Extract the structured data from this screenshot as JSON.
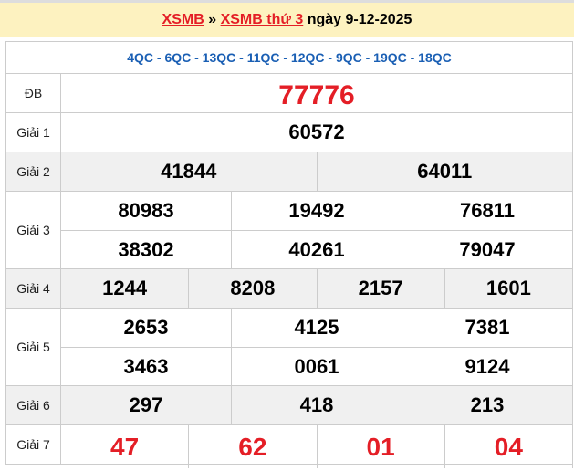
{
  "header": {
    "link1": "XSMB",
    "sep": " » ",
    "link2": "XSMB thứ 3",
    "rest": " ngày 9-12-2025"
  },
  "codes": "4QC - 6QC - 13QC - 11QC - 12QC - 9QC - 19QC - 18QC",
  "prizes": [
    {
      "label": "ĐB",
      "rows": [
        [
          "77776"
        ]
      ],
      "style": "db"
    },
    {
      "label": "Giải 1",
      "rows": [
        [
          "60572"
        ]
      ]
    },
    {
      "label": "Giải 2",
      "rows": [
        [
          "41844",
          "64011"
        ]
      ],
      "gray": true
    },
    {
      "label": "Giải 3",
      "rows": [
        [
          "80983",
          "19492",
          "76811"
        ],
        [
          "38302",
          "40261",
          "79047"
        ]
      ]
    },
    {
      "label": "Giải 4",
      "rows": [
        [
          "1244",
          "8208",
          "2157",
          "1601"
        ]
      ],
      "gray": true
    },
    {
      "label": "Giải 5",
      "rows": [
        [
          "2653",
          "4125",
          "7381"
        ],
        [
          "3463",
          "0061",
          "9124"
        ]
      ]
    },
    {
      "label": "Giải 6",
      "rows": [
        [
          "297",
          "418",
          "213"
        ]
      ],
      "gray": true
    },
    {
      "label": "Giải 7",
      "rows": [
        [
          "47",
          "62",
          "01",
          "04"
        ]
      ],
      "style": "g7"
    }
  ],
  "colors": {
    "red": "#e41e26",
    "blue": "#1a5fb4",
    "header_bg": "#fdf2c0"
  }
}
